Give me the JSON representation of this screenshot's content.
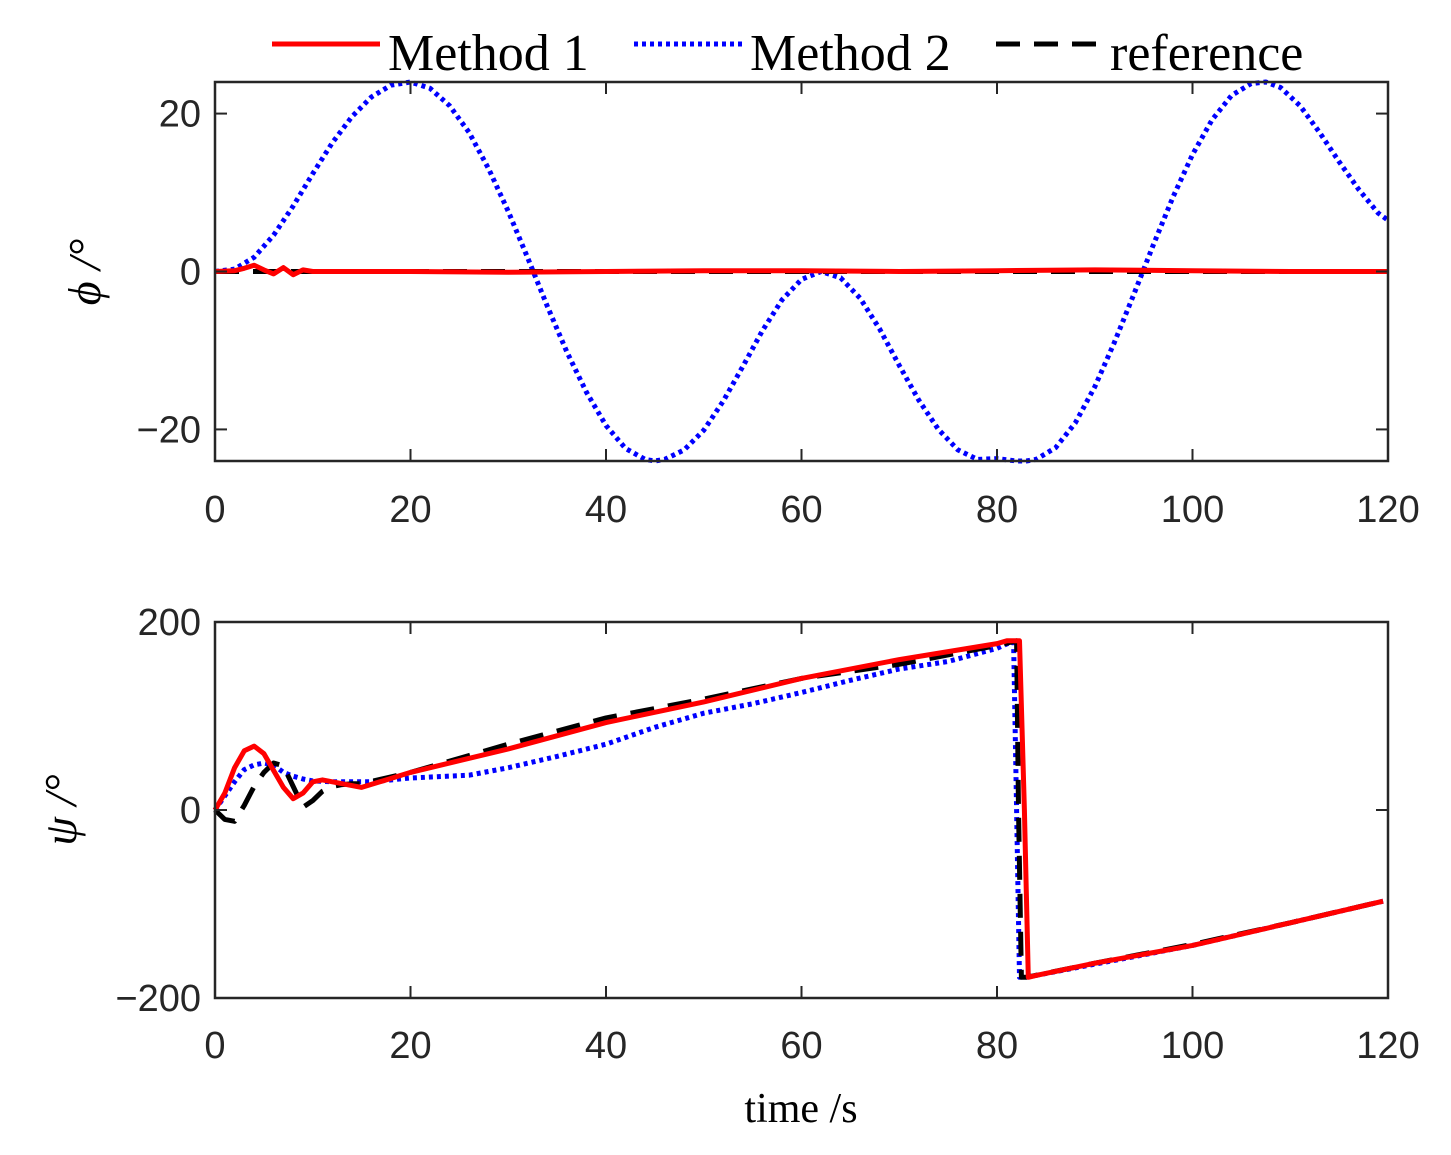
{
  "chart_data": [
    {
      "type": "line",
      "ylabel": "ϕ /°",
      "xlim": [
        0,
        120
      ],
      "ylim": [
        -24,
        24
      ],
      "xticks": [
        "0",
        "20",
        "40",
        "60",
        "80",
        "100",
        "120"
      ],
      "yticks": [
        "20",
        "0",
        "−20"
      ],
      "grid": false,
      "legend": "top-outside",
      "series": [
        {
          "name": "Method 1",
          "color": "#ff0000",
          "style": "solid",
          "x": [
            0,
            2,
            3,
            4,
            5,
            6,
            7,
            8,
            9,
            10,
            20,
            30,
            40,
            50,
            60,
            70,
            80,
            90,
            100,
            110,
            120
          ],
          "y": [
            0,
            0.1,
            0.4,
            0.8,
            0.2,
            -0.3,
            0.5,
            -0.4,
            0.2,
            0,
            0,
            -0.1,
            0,
            0.1,
            0.1,
            0,
            0.1,
            0.2,
            0.1,
            0,
            0
          ]
        },
        {
          "name": "Method 2",
          "color": "#0000ff",
          "style": "dotted",
          "x": [
            0,
            2,
            4,
            6,
            8,
            10,
            12,
            14,
            16,
            18,
            20,
            22,
            24,
            26,
            28,
            30,
            32,
            34,
            36,
            38,
            40,
            42,
            44,
            45,
            46,
            48,
            50,
            52,
            54,
            56,
            58,
            60,
            62,
            64,
            66,
            68,
            70,
            72,
            74,
            76,
            78,
            80,
            82,
            83,
            84,
            86,
            88,
            90,
            92,
            94,
            96,
            98,
            100,
            102,
            104,
            106,
            107.5,
            109,
            111,
            113,
            115,
            117,
            119,
            120
          ],
          "y": [
            0,
            0.3,
            1.8,
            4.6,
            8.3,
            12.4,
            16.3,
            19.6,
            22.1,
            23.6,
            24.0,
            23.2,
            21.0,
            17.6,
            13.0,
            7.6,
            1.7,
            -4.4,
            -10.2,
            -15.3,
            -19.5,
            -22.4,
            -23.8,
            -24.0,
            -23.8,
            -22.6,
            -20.1,
            -16.4,
            -12.0,
            -7.5,
            -3.6,
            -1.0,
            0,
            -0.8,
            -3.4,
            -7.3,
            -11.9,
            -16.3,
            -20.0,
            -22.6,
            -23.8,
            -23.7,
            -24.0,
            -24.0,
            -23.8,
            -22.3,
            -19.2,
            -14.6,
            -9.0,
            -2.9,
            3.4,
            9.4,
            14.8,
            19.2,
            22.3,
            23.8,
            24.0,
            23.3,
            21.0,
            17.6,
            13.9,
            10.4,
            7.4,
            6.5
          ]
        },
        {
          "name": "reference",
          "color": "#000000",
          "style": "dashed",
          "x": [
            0,
            120
          ],
          "y": [
            0,
            0
          ]
        }
      ]
    },
    {
      "type": "line",
      "xlabel": "time /s",
      "ylabel": "ψ /°",
      "xlim": [
        0,
        120
      ],
      "ylim": [
        -200,
        200
      ],
      "xticks": [
        "0",
        "20",
        "40",
        "60",
        "80",
        "100",
        "120"
      ],
      "yticks": [
        "200",
        "0",
        "−200"
      ],
      "grid": false,
      "series": [
        {
          "name": "Method 1",
          "color": "#ff0000",
          "style": "solid",
          "x": [
            0,
            1,
            2,
            3,
            4,
            5,
            6,
            7,
            8,
            9,
            10,
            11,
            12,
            13,
            14,
            15,
            20,
            30,
            40,
            50,
            60,
            70,
            80,
            81,
            82.3,
            82.8,
            83.2,
            84,
            90,
            100,
            110,
            119.5
          ],
          "y": [
            0,
            18,
            45,
            63,
            68,
            60,
            42,
            24,
            12,
            18,
            30,
            32,
            30,
            28,
            26,
            24,
            40,
            65,
            93,
            115,
            140,
            160,
            177,
            180,
            180,
            0,
            -178,
            -176,
            -163,
            -144,
            -120,
            -97
          ]
        },
        {
          "name": "Method 2",
          "color": "#0000ff",
          "style": "dotted",
          "x": [
            0,
            1,
            2,
            3,
            4,
            5,
            6,
            7,
            8,
            9,
            10,
            12,
            14,
            16,
            20,
            26,
            30,
            35,
            40,
            45,
            50,
            55,
            60,
            65,
            70,
            75,
            80,
            81.3,
            81.7,
            82,
            82.3,
            84,
            90,
            100,
            110,
            119.5
          ],
          "y": [
            0,
            15,
            30,
            43,
            48,
            50,
            48,
            40,
            36,
            33,
            31,
            30,
            30,
            30,
            34,
            37,
            45,
            57,
            70,
            88,
            103,
            113,
            125,
            138,
            150,
            158,
            172,
            178,
            178,
            0,
            -178,
            -176,
            -164,
            -144,
            -120,
            -97
          ]
        },
        {
          "name": "reference",
          "color": "#000000",
          "style": "dashed",
          "x": [
            0,
            1,
            2,
            3,
            4,
            5,
            6,
            7,
            8,
            9,
            10,
            11,
            12,
            13,
            14,
            15,
            20,
            30,
            40,
            50,
            60,
            70,
            80,
            82,
            82.2,
            82.5,
            83,
            90,
            100,
            110,
            119.5
          ],
          "y": [
            0,
            -10,
            -12,
            5,
            25,
            40,
            50,
            47,
            25,
            3,
            10,
            20,
            25,
            27,
            28,
            28,
            40,
            70,
            98,
            118,
            140,
            155,
            175,
            180,
            0,
            -178,
            -178,
            -163,
            -143,
            -120,
            -97
          ]
        }
      ]
    }
  ]
}
